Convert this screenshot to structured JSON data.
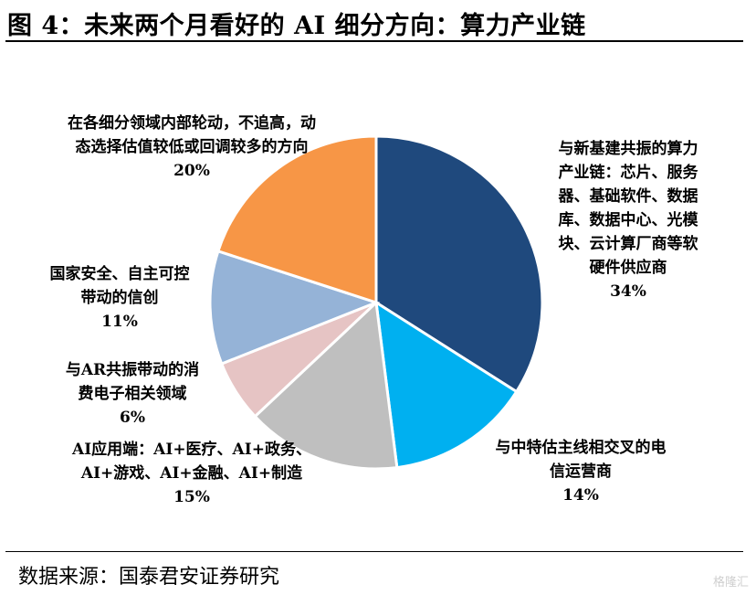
{
  "header": {
    "title": "图 4：未来两个月看好的 AI 细分方向：算力产业链"
  },
  "footer": {
    "source": "数据来源：国泰君安证券研究",
    "watermark": "格隆汇"
  },
  "chart_data": {
    "type": "pie",
    "title": "",
    "start_angle_deg": 90,
    "direction": "clockwise",
    "slices": [
      {
        "label_lines": [
          "与新基建共振的算力",
          "产业链：芯片、服务",
          "器、基础软件、数据",
          "库、数据中心、光模",
          "块、云计算厂商等软",
          "硬件供应商"
        ],
        "value": 34,
        "value_label": "34%",
        "color": "#1f497d"
      },
      {
        "label_lines": [
          "与中特估主线相交叉的电",
          "信运营商"
        ],
        "value": 14,
        "value_label": "14%",
        "color": "#00b0f0"
      },
      {
        "label_lines": [
          "AI应用端：AI+医疗、AI+政务、",
          "AI+游戏、AI+金融、AI+制造"
        ],
        "value": 15,
        "value_label": "15%",
        "color": "#bfbfbf"
      },
      {
        "label_lines": [
          "与AR共振带动的消",
          "费电子相关领域"
        ],
        "value": 6,
        "value_label": "6%",
        "color": "#e6c4c4"
      },
      {
        "label_lines": [
          "国家安全、自主可控",
          "带动的信创"
        ],
        "value": 11,
        "value_label": "11%",
        "color": "#95b3d7"
      },
      {
        "label_lines": [
          "在各细分领域内部轮动，不追高，动",
          "态选择估值较低或回调较多的方向"
        ],
        "value": 20,
        "value_label": "20%",
        "color": "#f79646"
      }
    ]
  }
}
